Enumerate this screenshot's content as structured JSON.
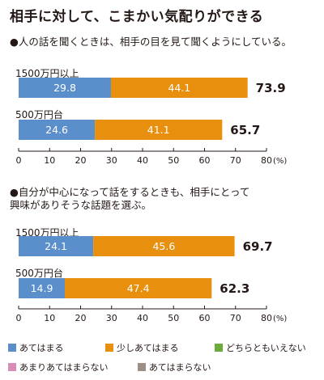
{
  "title": "相手に対して、こまかい気配りができる",
  "chart_data": [
    {
      "type": "bar",
      "stacked": true,
      "orientation": "horizontal",
      "question": "●人の話を聞くときは、相手の目を見て聞くようにしている。",
      "categories": [
        "1500万円以上",
        "500万円台"
      ],
      "series": [
        {
          "name": "あてはまる",
          "values": [
            29.8,
            24.6
          ]
        },
        {
          "name": "少しあてはまる",
          "values": [
            44.1,
            41.1
          ]
        }
      ],
      "totals": [
        73.9,
        65.7
      ],
      "xlim": [
        0,
        80
      ],
      "xticks": [
        0,
        10,
        20,
        30,
        40,
        50,
        60,
        70,
        80
      ],
      "xunit": "(%)"
    },
    {
      "type": "bar",
      "stacked": true,
      "orientation": "horizontal",
      "question": [
        "●自分が中心になって話をするときも、相手にとって",
        "興味がありそうな話題を選ぶ。"
      ],
      "categories": [
        "1500万円以上",
        "500万円台"
      ],
      "series": [
        {
          "name": "あてはまる",
          "values": [
            24.1,
            14.9
          ]
        },
        {
          "name": "少しあてはまる",
          "values": [
            45.6,
            47.4
          ]
        }
      ],
      "totals": [
        69.7,
        62.3
      ],
      "xlim": [
        0,
        80
      ],
      "xticks": [
        0,
        10,
        20,
        30,
        40,
        50,
        60,
        70,
        80
      ],
      "xunit": "(%)"
    }
  ],
  "legend": [
    {
      "label": "あてはまる",
      "color": "#5b8fcc"
    },
    {
      "label": "少しあてはまる",
      "color": "#e8900e"
    },
    {
      "label": "どちらともいえない",
      "color": "#6aab3a"
    },
    {
      "label": "あまりあてはまらない",
      "color": "#d68db8"
    },
    {
      "label": "あてはまらない",
      "color": "#9c8f86"
    }
  ]
}
